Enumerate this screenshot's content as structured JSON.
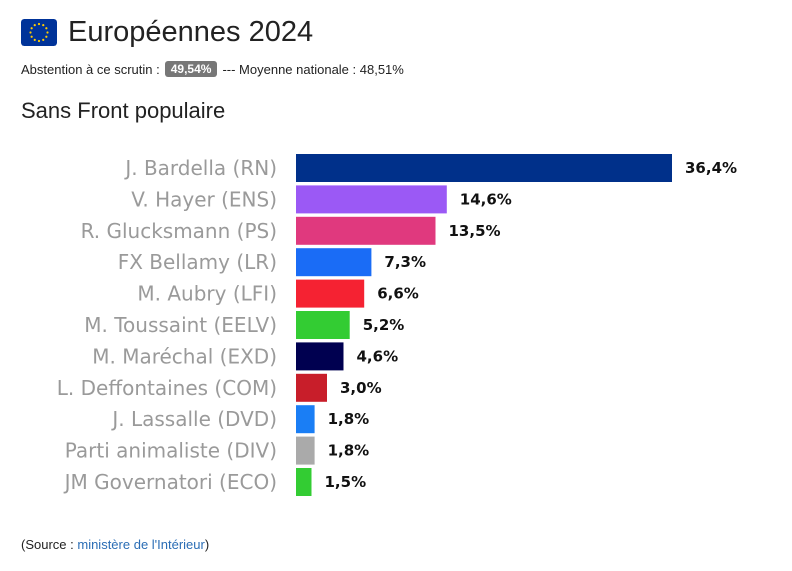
{
  "header": {
    "title": "Européennes 2024"
  },
  "abstention": {
    "prefix": "Abstention à ce scrutin :",
    "value": "49,54%",
    "national": "--- Moyenne nationale : 48,51%"
  },
  "source": {
    "open": "(Source : ",
    "link_text": "ministère de l'Intérieur",
    "close": ")"
  },
  "colors": {
    "flag_blue": "#003399",
    "flag_stars": "#ffcc00",
    "badge": "#777777",
    "link": "#2a6db5"
  },
  "chart_data": {
    "type": "bar",
    "orientation": "horizontal",
    "title": "Sans Front populaire",
    "xlim": [
      0,
      36.4
    ],
    "categories": [
      "J. Bardella (RN)",
      "V. Hayer (ENS)",
      "R. Glucksmann (PS)",
      "FX Bellamy (LR)",
      "M. Aubry (LFI)",
      "M. Toussaint (EELV)",
      "M. Maréchal (EXD)",
      "L. Deffontaines (COM)",
      "J. Lassalle (DVD)",
      "Parti animaliste (DIV)",
      "JM Governatori (ECO)"
    ],
    "values": [
      36.4,
      14.6,
      13.5,
      7.3,
      6.6,
      5.2,
      4.6,
      3.0,
      1.8,
      1.8,
      1.5
    ],
    "value_labels": [
      "36,4%",
      "14,6%",
      "13,5%",
      "7,3%",
      "6,6%",
      "5,2%",
      "4,6%",
      "3,0%",
      "1,8%",
      "1,8%",
      "1,5%"
    ],
    "colors": [
      "#00308a",
      "#9b59f5",
      "#e0397e",
      "#1a6cf6",
      "#f52232",
      "#33cc33",
      "#000050",
      "#c81e2a",
      "#1a7ef5",
      "#aaaaaa",
      "#33cc33"
    ],
    "grid": false,
    "legend": "none"
  }
}
